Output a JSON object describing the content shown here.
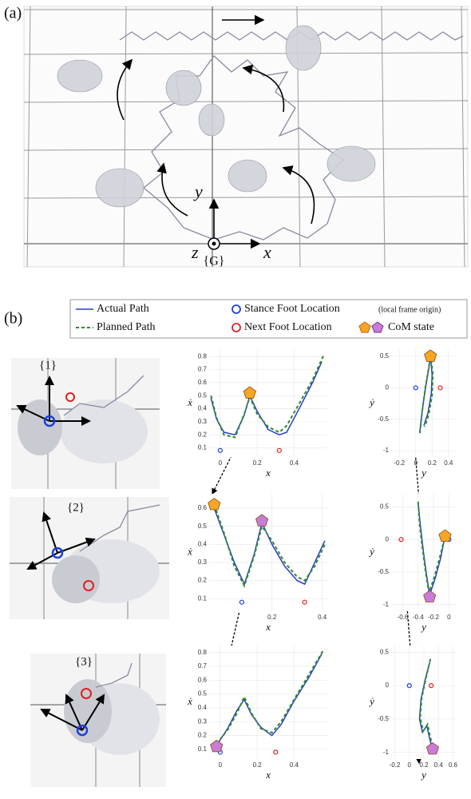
{
  "panel_a": {
    "label": "(a)",
    "axis_y": "y",
    "axis_z": "z",
    "axis_x": "x",
    "frame": "{G}"
  },
  "panel_b": {
    "label": "(b)",
    "legend": {
      "actual": "Actual Path",
      "planned": "Planned Path",
      "stance": "Stance Foot Location",
      "stance_note": "(local frame origin)",
      "next": "Next Foot Location",
      "com": "CoM state"
    },
    "snapshots": [
      "{1}",
      "{2}",
      "{3}"
    ]
  },
  "chart_data": [
    {
      "type": "line",
      "xlabel": "x",
      "ylabel": "ẋ",
      "xlim": [
        -0.06,
        0.58
      ],
      "ylim": [
        0.03,
        0.85
      ],
      "xticks": [
        0,
        0.2,
        0.4
      ],
      "yticks": [
        0.1,
        0.2,
        0.3,
        0.4,
        0.5,
        0.6,
        0.7,
        0.8
      ],
      "series": [
        {
          "color": "#2b3fc4",
          "dash": false,
          "x": [
            -0.05,
            -0.02,
            0.02,
            0.08,
            0.13,
            0.16,
            0.2,
            0.26,
            0.32,
            0.36,
            0.42,
            0.5,
            0.55
          ],
          "values": [
            0.48,
            0.32,
            0.22,
            0.2,
            0.35,
            0.5,
            0.38,
            0.24,
            0.2,
            0.22,
            0.38,
            0.6,
            0.76
          ]
        },
        {
          "color": "#2e8b2e",
          "dash": true,
          "x": [
            -0.05,
            -0.02,
            0.02,
            0.08,
            0.13,
            0.16,
            0.2,
            0.26,
            0.32,
            0.36,
            0.42,
            0.5,
            0.56
          ],
          "values": [
            0.5,
            0.33,
            0.2,
            0.18,
            0.36,
            0.49,
            0.36,
            0.26,
            0.22,
            0.27,
            0.42,
            0.62,
            0.81
          ]
        }
      ],
      "stance": {
        "x": 0,
        "y": 0.08
      },
      "next": {
        "x": 0.32,
        "y": 0.08
      },
      "com": [
        {
          "x": 0.16,
          "y": 0.52,
          "color": "#f5a623"
        }
      ]
    },
    {
      "type": "line",
      "xlabel": "x",
      "ylabel": "ẋ",
      "xlim": [
        -0.05,
        0.42
      ],
      "ylim": [
        0.03,
        0.68
      ],
      "xticks": [
        0.2,
        0.4
      ],
      "yticks": [
        0.1,
        0.2,
        0.3,
        0.4,
        0.5,
        0.6
      ],
      "series": [
        {
          "color": "#2b3fc4",
          "dash": false,
          "x": [
            -0.03,
            0.01,
            0.05,
            0.09,
            0.13,
            0.16,
            0.2,
            0.25,
            0.3,
            0.33,
            0.37,
            0.41
          ],
          "values": [
            0.6,
            0.45,
            0.3,
            0.18,
            0.35,
            0.52,
            0.4,
            0.28,
            0.2,
            0.18,
            0.3,
            0.42
          ]
        },
        {
          "color": "#2e8b2e",
          "dash": true,
          "x": [
            -0.03,
            0.01,
            0.05,
            0.09,
            0.13,
            0.16,
            0.2,
            0.25,
            0.3,
            0.33,
            0.37,
            0.41
          ],
          "values": [
            0.62,
            0.46,
            0.28,
            0.17,
            0.34,
            0.5,
            0.42,
            0.3,
            0.22,
            0.2,
            0.28,
            0.4
          ]
        }
      ],
      "stance": {
        "x": 0.08,
        "y": 0.08
      },
      "next": {
        "x": 0.33,
        "y": 0.08
      },
      "com": [
        {
          "x": -0.03,
          "y": 0.62,
          "color": "#f5a623"
        },
        {
          "x": 0.16,
          "y": 0.53,
          "color": "#c77dd8"
        }
      ]
    },
    {
      "type": "line",
      "xlabel": "x",
      "ylabel": "ẋ",
      "xlim": [
        -0.06,
        0.58
      ],
      "ylim": [
        0.03,
        0.85
      ],
      "xticks": [
        0,
        0.2,
        0.4
      ],
      "yticks": [
        0.1,
        0.2,
        0.3,
        0.4,
        0.5,
        0.6,
        0.7,
        0.8
      ],
      "series": [
        {
          "color": "#2b3fc4",
          "dash": false,
          "x": [
            -0.02,
            0.04,
            0.09,
            0.13,
            0.17,
            0.22,
            0.28,
            0.33,
            0.4,
            0.48,
            0.55
          ],
          "values": [
            0.13,
            0.25,
            0.38,
            0.46,
            0.35,
            0.26,
            0.2,
            0.28,
            0.45,
            0.62,
            0.79
          ]
        },
        {
          "color": "#2e8b2e",
          "dash": true,
          "x": [
            -0.02,
            0.04,
            0.09,
            0.13,
            0.17,
            0.22,
            0.28,
            0.33,
            0.4,
            0.48,
            0.56
          ],
          "values": [
            0.14,
            0.24,
            0.36,
            0.48,
            0.36,
            0.25,
            0.22,
            0.3,
            0.46,
            0.64,
            0.82
          ]
        }
      ],
      "stance": {
        "x": 0,
        "y": 0.08
      },
      "next": {
        "x": 0.3,
        "y": 0.08
      },
      "com": [
        {
          "x": -0.02,
          "y": 0.12,
          "color": "#c77dd8"
        }
      ]
    },
    {
      "type": "line",
      "xlabel": "y",
      "ylabel": "ẏ",
      "xlim": [
        -0.3,
        0.5
      ],
      "ylim": [
        -1.1,
        0.6
      ],
      "xticks": [
        -0.2,
        0,
        0.2,
        0.4
      ],
      "yticks": [
        -1,
        -0.5,
        0,
        0.5
      ],
      "series": [
        {
          "color": "#2b3fc4",
          "dash": false,
          "x": [
            0.05,
            0.08,
            0.12,
            0.16,
            0.18,
            0.2,
            0.19,
            0.15,
            0.1
          ],
          "values": [
            -0.7,
            -0.35,
            0,
            0.3,
            0.5,
            0.2,
            -0.1,
            -0.4,
            -0.6
          ]
        },
        {
          "color": "#2e8b2e",
          "dash": true,
          "x": [
            0.05,
            0.08,
            0.12,
            0.16,
            0.18,
            0.21,
            0.2,
            0.16,
            0.11
          ],
          "values": [
            -0.72,
            -0.36,
            0.02,
            0.32,
            0.52,
            0.22,
            -0.12,
            -0.42,
            -0.62
          ]
        }
      ],
      "stance": {
        "x": 0,
        "y": 0
      },
      "next": {
        "x": 0.3,
        "y": 0
      },
      "com": [
        {
          "x": 0.18,
          "y": 0.5,
          "color": "#f5a623"
        }
      ]
    },
    {
      "type": "line",
      "xlabel": "y",
      "ylabel": "ẏ",
      "xlim": [
        -0.75,
        0.1
      ],
      "ylim": [
        -1.1,
        0.7
      ],
      "xticks": [
        -0.6,
        -0.4,
        -0.2,
        0
      ],
      "yticks": [
        -1,
        -0.5,
        0,
        0.5
      ],
      "series": [
        {
          "color": "#2b3fc4",
          "dash": false,
          "x": [
            -0.4,
            -0.37,
            -0.33,
            -0.29,
            -0.25,
            -0.18,
            -0.11,
            -0.05
          ],
          "values": [
            0.55,
            0.2,
            -0.2,
            -0.55,
            -0.85,
            -0.6,
            -0.3,
            0.05
          ]
        },
        {
          "color": "#2e8b2e",
          "dash": true,
          "x": [
            -0.4,
            -0.38,
            -0.34,
            -0.3,
            -0.26,
            -0.19,
            -0.12,
            -0.05
          ],
          "values": [
            0.58,
            0.22,
            -0.18,
            -0.52,
            -0.82,
            -0.58,
            -0.28,
            0.05
          ]
        }
      ],
      "stance": {
        "x": 0,
        "y": 0
      },
      "next": {
        "x": -0.62,
        "y": 0
      },
      "com": [
        {
          "x": -0.05,
          "y": 0.05,
          "color": "#f5a623"
        },
        {
          "x": -0.25,
          "y": -0.88,
          "color": "#c77dd8"
        }
      ]
    },
    {
      "type": "line",
      "xlabel": "y",
      "ylabel": "ẏ",
      "xlim": [
        -0.25,
        0.65
      ],
      "ylim": [
        -1.1,
        0.6
      ],
      "xticks": [
        -0.2,
        0,
        0.2,
        0.4,
        0.6
      ],
      "yticks": [
        -1,
        -0.5,
        0,
        0.5
      ],
      "series": [
        {
          "color": "#2b3fc4",
          "dash": false,
          "x": [
            0.28,
            0.22,
            0.16,
            0.14,
            0.18,
            0.24,
            0.28,
            0.32
          ],
          "values": [
            0.35,
            0.1,
            -0.2,
            -0.5,
            -0.7,
            -0.6,
            -0.8,
            -0.95
          ]
        },
        {
          "color": "#2e8b2e",
          "dash": true,
          "x": [
            0.29,
            0.23,
            0.17,
            0.15,
            0.19,
            0.25,
            0.29,
            0.33
          ],
          "values": [
            0.4,
            0.12,
            -0.18,
            -0.48,
            -0.68,
            -0.58,
            -0.78,
            -0.96
          ]
        }
      ],
      "stance": {
        "x": 0,
        "y": 0
      },
      "next": {
        "x": 0.3,
        "y": 0
      },
      "com": [
        {
          "x": 0.32,
          "y": -0.95,
          "color": "#c77dd8"
        }
      ]
    }
  ]
}
